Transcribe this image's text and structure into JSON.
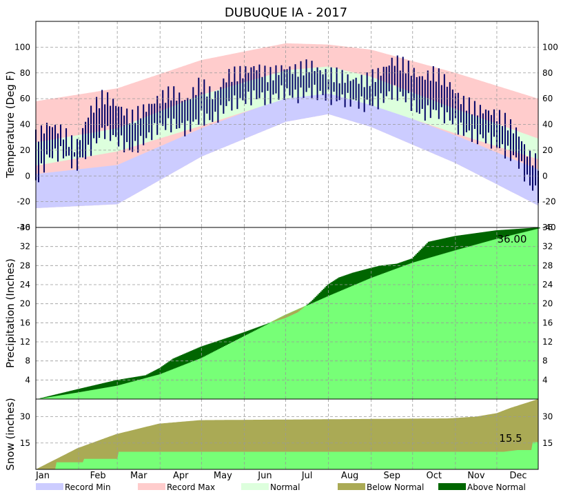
{
  "chart_data": {
    "title": "DUBUQUE IA - 2017",
    "months": [
      "Jan",
      "Feb",
      "Mar",
      "Apr",
      "May",
      "Jun",
      "Jul",
      "Aug",
      "Sep",
      "Oct",
      "Nov",
      "Dec"
    ],
    "legend": [
      {
        "label": "Record Min",
        "color": "#ccccff"
      },
      {
        "label": "Record Max",
        "color": "#ffcccc"
      },
      {
        "label": "Normal",
        "color": "#ddffdd"
      },
      {
        "label": "Below Normal",
        "color": "#aaaa55"
      },
      {
        "label": "Above Normal",
        "color": "#006600"
      }
    ],
    "colors": {
      "record_min": "#ccccff",
      "record_max": "#ffcccc",
      "normal": "#ddffdd",
      "observed": "#000066",
      "precip_normal": "#77ff77",
      "below": "#aaaa55",
      "above": "#006600",
      "snow_normal": "#aaaa55",
      "snow_observed": "#77ff77"
    },
    "panels": [
      {
        "type": "area",
        "name": "temperature",
        "ylabel": "Temperature (Deg F)",
        "ylim": [
          -40,
          120
        ],
        "yticks": [
          -40,
          -20,
          0,
          20,
          40,
          60,
          80,
          100
        ],
        "normal_high": {
          "x": [
            1,
            60,
            121,
            182,
            213,
            244,
            305,
            365
          ],
          "y": [
            26,
            37,
            63,
            82,
            85,
            77,
            52,
            29
          ]
        },
        "normal_low": {
          "x": [
            1,
            60,
            121,
            182,
            213,
            244,
            305,
            365
          ],
          "y": [
            8,
            19,
            39,
            60,
            64,
            55,
            33,
            13
          ]
        },
        "record_high": {
          "x": [
            1,
            60,
            121,
            182,
            213,
            244,
            305,
            365
          ],
          "y": [
            58,
            68,
            90,
            103,
            102,
            98,
            80,
            60
          ]
        },
        "record_low": {
          "x": [
            1,
            60,
            121,
            182,
            213,
            244,
            305,
            365
          ],
          "y": [
            -25,
            -22,
            15,
            42,
            48,
            38,
            10,
            -23
          ]
        },
        "observed_high": {
          "x": [
            1,
            10,
            20,
            30,
            40,
            50,
            60,
            70,
            80,
            90,
            100,
            110,
            120,
            130,
            140,
            150,
            160,
            170,
            180,
            190,
            200,
            210,
            220,
            230,
            240,
            250,
            260,
            270,
            280,
            290,
            300,
            310,
            320,
            330,
            340,
            350,
            358,
            365
          ],
          "y": [
            30,
            40,
            35,
            22,
            50,
            62,
            55,
            45,
            52,
            60,
            65,
            58,
            72,
            62,
            78,
            80,
            85,
            78,
            84,
            82,
            86,
            80,
            78,
            75,
            74,
            80,
            90,
            85,
            76,
            80,
            72,
            58,
            52,
            50,
            44,
            34,
            16,
            10
          ]
        },
        "observed_low": {
          "x": [
            1,
            10,
            20,
            30,
            40,
            50,
            60,
            70,
            80,
            90,
            100,
            110,
            120,
            130,
            140,
            150,
            160,
            170,
            180,
            190,
            200,
            210,
            220,
            230,
            240,
            250,
            260,
            270,
            280,
            290,
            300,
            310,
            320,
            330,
            340,
            350,
            358,
            365
          ],
          "y": [
            -5,
            15,
            18,
            8,
            20,
            35,
            28,
            20,
            28,
            38,
            40,
            36,
            45,
            44,
            55,
            58,
            62,
            60,
            65,
            62,
            66,
            62,
            60,
            58,
            55,
            58,
            65,
            60,
            48,
            50,
            45,
            35,
            30,
            28,
            20,
            12,
            -5,
            -15
          ]
        }
      },
      {
        "type": "area",
        "name": "precipitation",
        "ylabel": "Precipitation (Inches)",
        "ylim": [
          0,
          36
        ],
        "yticks": [
          4,
          8,
          12,
          16,
          20,
          24,
          28,
          32,
          36
        ],
        "total_label": "36.00",
        "normal_cum": {
          "x": [
            1,
            31,
            59,
            90,
            120,
            151,
            181,
            212,
            243,
            273,
            304,
            334,
            365
          ],
          "y": [
            0,
            1.4,
            2.8,
            5.2,
            8.6,
            13.2,
            17.6,
            21.6,
            25.4,
            28.6,
            31.2,
            33.6,
            35.8
          ]
        },
        "observed_cum": {
          "x": [
            1,
            31,
            59,
            80,
            90,
            100,
            120,
            151,
            170,
            181,
            190,
            200,
            212,
            220,
            230,
            243,
            250,
            262,
            273,
            285,
            304,
            334,
            365
          ],
          "y": [
            0,
            2.1,
            4.0,
            5.0,
            6.5,
            8.5,
            11.0,
            14.0,
            16.0,
            17.0,
            18.2,
            20.5,
            24.0,
            25.5,
            26.5,
            27.5,
            28.0,
            28.4,
            29.5,
            33.0,
            34.2,
            35.4,
            36.0
          ]
        }
      },
      {
        "type": "area",
        "name": "snow",
        "ylabel": "Snow (inches)",
        "ylim": [
          0,
          40
        ],
        "yticks": [
          15,
          30
        ],
        "total_label": "15.5",
        "normal_cum": {
          "x": [
            1,
            31,
            59,
            90,
            105,
            120,
            300,
            320,
            335,
            345,
            365
          ],
          "y": [
            0,
            12,
            20,
            26,
            27,
            28,
            29,
            30,
            32,
            35,
            40
          ]
        },
        "observed_cum": {
          "x": [
            1,
            15,
            16,
            35,
            36,
            60,
            61,
            300,
            330,
            340,
            350,
            360,
            361,
            365
          ],
          "y": [
            0,
            0,
            4,
            4,
            6,
            6,
            10,
            10,
            10,
            10,
            11,
            11,
            15.5,
            15.5
          ]
        }
      }
    ]
  }
}
